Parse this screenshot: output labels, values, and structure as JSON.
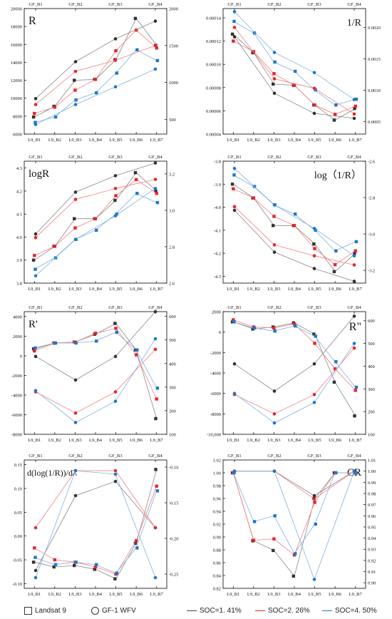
{
  "colors": {
    "soc1": "#333333",
    "soc2": "#e8242a",
    "soc3": "#1f77c8",
    "axis": "#000000"
  },
  "top_ticks": [
    "GF_B1",
    "GF_B2",
    "GF_B3",
    "GF_B4"
  ],
  "bottom_ticks": [
    "L9_B1",
    "L9_B2",
    "L9_B3",
    "L9_B4",
    "L9_B5",
    "L9_B6",
    "L9_B7"
  ],
  "legend": {
    "landsat": "Landsat 9",
    "gf": "GF-1 WFV",
    "soc1": "SOC=1. 41%",
    "soc2": "SOC=2. 26%",
    "soc3": "SOC=4. 50%"
  },
  "chart_data": [
    {
      "type": "line",
      "title": "R",
      "left_ticks": [
        "6000",
        "8000",
        "10000",
        "12000",
        "14000",
        "16000",
        "18000",
        "20000"
      ],
      "right_ticks": [
        "500",
        "1000",
        "1500",
        "2000"
      ],
      "ylim": [
        6000,
        20000
      ],
      "y2lim": [
        300,
        2000
      ],
      "landsat": [
        {
          "name": "SOC=1. 41%",
          "values": [
            7900,
            9100,
            12000,
            12100,
            14300,
            18900,
            15900
          ]
        },
        {
          "name": "SOC=2. 26%",
          "values": [
            8300,
            9000,
            10900,
            12100,
            15300,
            17600,
            15600
          ]
        },
        {
          "name": "SOC=4. 50%",
          "values": [
            7300,
            7900,
            9800,
            10600,
            12800,
            15400,
            14200
          ]
        }
      ],
      "gf": [
        {
          "name": "SOC=1. 41%",
          "values": [
            780,
            1280,
            1590,
            1830
          ]
        },
        {
          "name": "SOC=2. 26%",
          "values": [
            700,
            1150,
            1300,
            1500
          ]
        },
        {
          "name": "SOC=4. 50%",
          "values": [
            430,
            700,
            940,
            1180
          ]
        }
      ]
    },
    {
      "type": "line",
      "title": "1/R",
      "left_ticks": [
        "0.00004",
        "0.00006",
        "0.00008",
        "0.00010",
        "0.00012",
        "0.00014"
      ],
      "right_ticks": [
        "0.0005",
        "0.0010",
        "0.0015",
        "0.0020"
      ],
      "ylim": [
        4e-05,
        0.000148
      ],
      "y2lim": [
        0.0003,
        0.0023
      ],
      "landsat": [
        {
          "name": "SOC=1. 41%",
          "values": [
            0.000126,
            0.00011,
            8.3e-05,
            8.2e-05,
            6.5e-05,
            5.2e-05,
            6.2e-05
          ]
        },
        {
          "name": "SOC=2. 26%",
          "values": [
            0.00012,
            0.000111,
            9.2e-05,
            8.2e-05,
            6.5e-05,
            5.7e-05,
            6.4e-05
          ]
        },
        {
          "name": "SOC=4. 50%",
          "values": [
            0.000137,
            0.000127,
            0.000102,
            9.4e-05,
            7.8e-05,
            6.5e-05,
            7e-05
          ]
        }
      ],
      "gf": [
        {
          "name": "SOC=1. 41%",
          "values": [
            0.00185,
            0.00095,
            0.00063,
            0.00055
          ]
        },
        {
          "name": "SOC=2. 26%",
          "values": [
            0.002,
            0.00118,
            0.00103,
            0.00062
          ]
        },
        {
          "name": "SOC=4. 50%",
          "values": [
            0.00225,
            0.0016,
            0.00128,
            0.00085
          ]
        }
      ]
    },
    {
      "type": "line",
      "title": "logR",
      "left_ticks": [
        "3.8",
        "3.9",
        "4.0",
        "4.1",
        "4.2",
        "4.3"
      ],
      "right_ticks": [
        "2.6",
        "2.8",
        "3.0",
        "3.2"
      ],
      "ylim": [
        3.8,
        4.33
      ],
      "y2lim": [
        2.6,
        3.27
      ],
      "landsat": [
        {
          "name": "SOC=1. 41%",
          "values": [
            3.9,
            3.96,
            4.08,
            4.08,
            4.16,
            4.28,
            4.2
          ]
        },
        {
          "name": "SOC=2. 26%",
          "values": [
            3.92,
            3.96,
            4.04,
            4.08,
            4.18,
            4.25,
            4.19
          ]
        },
        {
          "name": "SOC=4. 50%",
          "values": [
            3.86,
            3.91,
            3.99,
            4.03,
            4.1,
            4.19,
            4.15
          ]
        }
      ],
      "gf": [
        {
          "name": "SOC=1. 41%",
          "values": [
            2.87,
            3.1,
            3.19,
            3.26
          ]
        },
        {
          "name": "SOC=2. 26%",
          "values": [
            2.85,
            3.06,
            3.12,
            3.17
          ]
        },
        {
          "name": "SOC=4. 50%",
          "values": [
            2.64,
            2.84,
            2.97,
            3.12
          ]
        }
      ]
    },
    {
      "type": "line",
      "title": "log（1/R）",
      "left_ticks": [
        "-4.3",
        "-4.2",
        "-4.1",
        "-4.0",
        "-3.9",
        "-3.8"
      ],
      "right_ticks": [
        "-3.2",
        "-3.0",
        "-2.8",
        "-2.6"
      ],
      "ylim": [
        -4.33,
        -3.8
      ],
      "y2lim": [
        -3.27,
        -2.6
      ],
      "landsat": [
        {
          "name": "SOC=1. 41%",
          "values": [
            -3.9,
            -3.96,
            -4.08,
            -4.08,
            -4.16,
            -4.28,
            -4.2
          ]
        },
        {
          "name": "SOC=2. 26%",
          "values": [
            -3.92,
            -3.96,
            -4.04,
            -4.08,
            -4.18,
            -4.25,
            -4.19
          ]
        },
        {
          "name": "SOC=4. 50%",
          "values": [
            -3.86,
            -3.91,
            -3.99,
            -4.03,
            -4.1,
            -4.19,
            -4.15
          ]
        }
      ],
      "gf": [
        {
          "name": "SOC=1. 41%",
          "values": [
            -2.87,
            -3.1,
            -3.19,
            -3.26
          ]
        },
        {
          "name": "SOC=2. 26%",
          "values": [
            -2.85,
            -3.06,
            -3.12,
            -3.17
          ]
        },
        {
          "name": "SOC=4. 50%",
          "values": [
            -2.64,
            -2.84,
            -2.97,
            -3.12
          ]
        }
      ]
    },
    {
      "type": "line",
      "title": "R'",
      "left_ticks": [
        "-8000",
        "-6000",
        "-4000",
        "-2000",
        "0",
        "2000",
        "4000"
      ],
      "right_ticks": [
        "100",
        "200",
        "300",
        "400",
        "500",
        "600"
      ],
      "ylim": [
        -8000,
        4500
      ],
      "y2lim": [
        100,
        620
      ],
      "landsat": [
        {
          "name": "SOC=1. 41%",
          "values": [
            700,
            1300,
            1400,
            2200,
            3300,
            600,
            -6400
          ]
        },
        {
          "name": "SOC=2. 26%",
          "values": [
            500,
            1300,
            1400,
            2300,
            2800,
            100,
            -4400
          ]
        },
        {
          "name": "SOC=4. 50%",
          "values": [
            800,
            1300,
            1300,
            1500,
            2400,
            600,
            -3300
          ]
        }
      ],
      "gf": [
        {
          "name": "SOC=1. 41%",
          "values": [
            430,
            330,
            430,
            620
          ]
        },
        {
          "name": "SOC=2. 26%",
          "values": [
            280,
            190,
            280,
            460
          ]
        },
        {
          "name": "SOC=4. 50%",
          "values": [
            285,
            150,
            240,
            505
          ]
        }
      ]
    },
    {
      "type": "line",
      "title": "R\"",
      "left_ticks": [
        "-10,000",
        "-8000",
        "-6000",
        "-4000",
        "-2000",
        "0",
        "2000"
      ],
      "right_ticks": [
        "100",
        "200",
        "300",
        "400",
        "500",
        "600"
      ],
      "ylim": [
        -10000,
        2000
      ],
      "y2lim": [
        100,
        640
      ],
      "landsat": [
        {
          "name": "SOC=1. 41%",
          "values": [
            1000,
            300,
            500,
            900,
            -200,
            -4900,
            -8200
          ]
        },
        {
          "name": "SOC=2. 26%",
          "values": [
            1200,
            500,
            400,
            800,
            -1100,
            -3600,
            -5700
          ]
        },
        {
          "name": "SOC=4. 50%",
          "values": [
            1000,
            400,
            100,
            600,
            -400,
            -2900,
            -5400
          ]
        }
      ],
      "gf": [
        {
          "name": "SOC=1. 41%",
          "values": [
            410,
            290,
            410,
            620
          ]
        },
        {
          "name": "SOC=2. 26%",
          "values": [
            275,
            190,
            275,
            480
          ]
        },
        {
          "name": "SOC=4. 50%",
          "values": [
            280,
            150,
            240,
            500
          ]
        }
      ]
    },
    {
      "type": "line",
      "title": "d(log(1/R))/dλ",
      "left_ticks": [
        "-0.10",
        "-0.05",
        "0.00",
        "0.05",
        "0.10",
        "0.15"
      ],
      "right_ticks": [
        "-0.25",
        "-0.20",
        "-0.15",
        "-0.10"
      ],
      "ylim": [
        -0.11,
        0.16
      ],
      "y2lim": [
        -0.27,
        -0.09
      ],
      "landsat": [
        {
          "name": "SOC=1. 41%",
          "values": [
            -0.055,
            -0.065,
            -0.062,
            -0.07,
            -0.09,
            -0.015,
            0.14
          ]
        },
        {
          "name": "SOC=2. 26%",
          "values": [
            -0.025,
            -0.05,
            -0.055,
            -0.065,
            -0.08,
            -0.01,
            0.105
          ]
        },
        {
          "name": "SOC=4. 50%",
          "values": [
            -0.045,
            -0.06,
            -0.055,
            -0.06,
            -0.078,
            -0.025,
            0.095
          ]
        }
      ],
      "gf": [
        {
          "name": "SOC=1. 41%",
          "values": [
            -0.245,
            -0.14,
            -0.12,
            -0.185
          ]
        },
        {
          "name": "SOC=2. 26%",
          "values": [
            -0.185,
            -0.105,
            -0.105,
            -0.185
          ]
        },
        {
          "name": "SOC=4. 50%",
          "values": [
            -0.255,
            -0.105,
            -0.11,
            -0.255
          ]
        }
      ]
    },
    {
      "type": "line",
      "title": "CR",
      "left_ticks": [
        "0.82",
        "0.84",
        "0.86",
        "0.88",
        "0.90",
        "0.92",
        "0.94",
        "0.96",
        "0.98",
        "1.00",
        "1.02"
      ],
      "right_ticks": [
        "0.90",
        "0.91",
        "0.92",
        "0.93",
        "0.94",
        "0.95",
        "0.96",
        "0.97",
        "0.98",
        "0.99",
        "1.00",
        "1.01"
      ],
      "ylim": [
        0.82,
        1.02
      ],
      "y2lim": [
        0.895,
        1.01
      ],
      "landsat": [
        {
          "name": "SOC=1. 41%",
          "values": [
            1.0,
            0.894,
            0.879,
            0.839,
            0.96,
            1.0,
            1.0
          ]
        },
        {
          "name": "SOC=2. 26%",
          "values": [
            1.0,
            0.895,
            0.897,
            0.872,
            0.954,
            1.0,
            1.0
          ]
        },
        {
          "name": "SOC=4. 50%",
          "values": [
            1.0,
            0.924,
            0.933,
            0.874,
            0.92,
            1.0,
            1.0
          ]
        }
      ],
      "gf": [
        {
          "name": "SOC=1. 41%",
          "values": [
            1.0,
            1.0,
            0.978,
            1.0
          ]
        },
        {
          "name": "SOC=2. 26%",
          "values": [
            1.0,
            1.0,
            0.975,
            1.0
          ]
        },
        {
          "name": "SOC=4. 50%",
          "values": [
            1.0,
            1.0,
            0.903,
            1.0
          ]
        }
      ]
    }
  ]
}
